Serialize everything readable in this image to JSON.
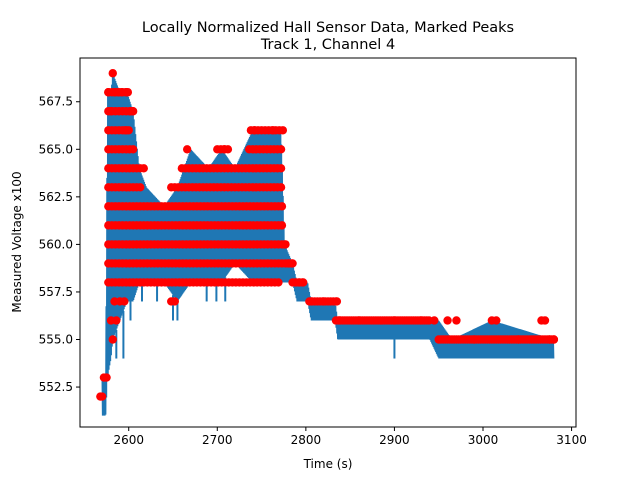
{
  "chart_data": {
    "type": "scatter",
    "title": "Locally Normalized Hall Sensor Data, Marked Peaks",
    "subtitle": "Track 1, Channel 4",
    "xlabel": "Time (s)",
    "ylabel": "Measured Voltage x100",
    "xlim": [
      2545,
      3105
    ],
    "ylim": [
      550.4,
      569.8
    ],
    "x_ticks": [
      2600,
      2700,
      2800,
      2900,
      3000,
      3100
    ],
    "x_tick_labels": [
      "2600",
      "2700",
      "2800",
      "2900",
      "3000",
      "3100"
    ],
    "y_ticks": [
      552.5,
      555.0,
      557.5,
      560.0,
      562.5,
      565.0,
      567.5
    ],
    "y_tick_labels": [
      "552.5",
      "555.0",
      "557.5",
      "560.0",
      "562.5",
      "565.0",
      "567.5"
    ],
    "grid": false,
    "colors": {
      "signal": "#1f77b4",
      "peaks": "#ff0000"
    },
    "series": [
      {
        "kind": "line",
        "envelope": [
          {
            "x": 2570,
            "y_min": 551,
            "y_max": 553
          },
          {
            "x": 2574,
            "y_min": 551,
            "y_max": 553
          },
          {
            "x": 2576,
            "y_min": 553,
            "y_max": 568
          },
          {
            "x": 2580,
            "y_min": 554,
            "y_max": 568
          },
          {
            "x": 2582,
            "y_min": 555,
            "y_max": 569
          },
          {
            "x": 2590,
            "y_min": 556,
            "y_max": 568
          },
          {
            "x": 2598,
            "y_min": 557,
            "y_max": 568
          },
          {
            "x": 2605,
            "y_min": 557,
            "y_max": 567
          },
          {
            "x": 2612,
            "y_min": 558,
            "y_max": 564
          },
          {
            "x": 2620,
            "y_min": 558,
            "y_max": 563
          },
          {
            "x": 2640,
            "y_min": 558,
            "y_max": 562
          },
          {
            "x": 2655,
            "y_min": 557,
            "y_max": 563
          },
          {
            "x": 2670,
            "y_min": 558,
            "y_max": 565
          },
          {
            "x": 2690,
            "y_min": 558,
            "y_max": 564
          },
          {
            "x": 2705,
            "y_min": 558,
            "y_max": 565
          },
          {
            "x": 2720,
            "y_min": 559,
            "y_max": 564
          },
          {
            "x": 2740,
            "y_min": 558,
            "y_max": 566
          },
          {
            "x": 2760,
            "y_min": 558,
            "y_max": 566
          },
          {
            "x": 2772,
            "y_min": 558,
            "y_max": 566
          },
          {
            "x": 2776,
            "y_min": 558,
            "y_max": 560
          },
          {
            "x": 2785,
            "y_min": 558,
            "y_max": 559
          },
          {
            "x": 2790,
            "y_min": 557,
            "y_max": 558
          },
          {
            "x": 2802,
            "y_min": 557,
            "y_max": 558
          },
          {
            "x": 2806,
            "y_min": 556,
            "y_max": 557
          },
          {
            "x": 2833,
            "y_min": 556,
            "y_max": 557
          },
          {
            "x": 2836,
            "y_min": 555,
            "y_max": 556
          },
          {
            "x": 2880,
            "y_min": 555,
            "y_max": 556
          },
          {
            "x": 2940,
            "y_min": 555,
            "y_max": 556
          },
          {
            "x": 2950,
            "y_min": 554,
            "y_max": 556
          },
          {
            "x": 2965,
            "y_min": 554,
            "y_max": 555
          },
          {
            "x": 3010,
            "y_min": 554,
            "y_max": 556
          },
          {
            "x": 3080,
            "y_min": 554,
            "y_max": 555
          }
        ],
        "dips": [
          {
            "x": 2586,
            "y": 554
          },
          {
            "x": 2594,
            "y": 554
          },
          {
            "x": 2602,
            "y": 556
          },
          {
            "x": 2615,
            "y": 557
          },
          {
            "x": 2632,
            "y": 557
          },
          {
            "x": 2650,
            "y": 556
          },
          {
            "x": 2655,
            "y": 556
          },
          {
            "x": 2688,
            "y": 557
          },
          {
            "x": 2699,
            "y": 557
          },
          {
            "x": 2709,
            "y": 557
          },
          {
            "x": 2900,
            "y": 554
          },
          {
            "x": 2950,
            "y": 554
          },
          {
            "x": 2968,
            "y": 554
          }
        ]
      },
      {
        "kind": "peaks",
        "points": [
          [
            2568,
            552
          ],
          [
            2570,
            552
          ],
          [
            2572,
            553
          ],
          [
            2575,
            553
          ],
          [
            2577,
            568
          ],
          [
            2580,
            567
          ],
          [
            2582,
            569
          ],
          [
            2584,
            568
          ],
          [
            2588,
            568
          ],
          [
            2592,
            568
          ],
          [
            2597,
            568
          ],
          [
            2599,
            568
          ],
          [
            2602,
            567
          ],
          [
            2604,
            567
          ],
          [
            2596,
            566
          ],
          [
            2600,
            566
          ],
          [
            2580,
            556
          ],
          [
            2582,
            555
          ],
          [
            2586,
            556
          ],
          [
            2590,
            557
          ],
          [
            2595,
            557
          ],
          [
            2648,
            557
          ],
          [
            2652,
            557
          ],
          [
            2584,
            557
          ],
          [
            2666,
            565
          ],
          [
            2708,
            565
          ],
          [
            2742,
            566
          ],
          [
            2763,
            566
          ],
          [
            2776,
            560
          ],
          [
            2780,
            559
          ],
          [
            2784,
            559
          ],
          [
            2788,
            558
          ],
          [
            2792,
            558
          ],
          [
            2796,
            558
          ],
          [
            2806,
            557
          ],
          [
            2820,
            557
          ],
          [
            2835,
            557
          ],
          [
            2838,
            556
          ],
          [
            2860,
            556
          ],
          [
            2900,
            556
          ],
          [
            2930,
            556
          ],
          [
            2945,
            556
          ],
          [
            2960,
            556
          ],
          [
            2970,
            556
          ],
          [
            2990,
            555
          ],
          [
            3010,
            556
          ],
          [
            3015,
            556
          ],
          [
            3040,
            555
          ],
          [
            3066,
            556
          ],
          [
            3070,
            556
          ],
          [
            3075,
            555
          ],
          [
            3080,
            555
          ]
        ],
        "bands": [
          {
            "y": 568,
            "x_start": 2577,
            "x_end": 2600,
            "spacing": 4
          },
          {
            "y": 567,
            "x_start": 2577,
            "x_end": 2605,
            "spacing": 4
          },
          {
            "y": 566,
            "x_start": 2577,
            "x_end": 2600,
            "spacing": 4
          },
          {
            "y": 566,
            "x_start": 2738,
            "x_end": 2774,
            "spacing": 4
          },
          {
            "y": 565,
            "x_start": 2577,
            "x_end": 2608,
            "spacing": 4
          },
          {
            "y": 565,
            "x_start": 2700,
            "x_end": 2712,
            "spacing": 4
          },
          {
            "y": 565,
            "x_start": 2736,
            "x_end": 2774,
            "spacing": 4
          },
          {
            "y": 564,
            "x_start": 2577,
            "x_end": 2620,
            "spacing": 4
          },
          {
            "y": 564,
            "x_start": 2660,
            "x_end": 2775,
            "spacing": 4
          },
          {
            "y": 563,
            "x_start": 2577,
            "x_end": 2615,
            "spacing": 4
          },
          {
            "y": 563,
            "x_start": 2648,
            "x_end": 2775,
            "spacing": 4
          },
          {
            "y": 562,
            "x_start": 2577,
            "x_end": 2775,
            "spacing": 4
          },
          {
            "y": 561,
            "x_start": 2577,
            "x_end": 2775,
            "spacing": 4
          },
          {
            "y": 560,
            "x_start": 2577,
            "x_end": 2780,
            "spacing": 4
          },
          {
            "y": 559,
            "x_start": 2577,
            "x_end": 2788,
            "spacing": 4
          },
          {
            "y": 558,
            "x_start": 2577,
            "x_end": 2772,
            "spacing": 4
          },
          {
            "y": 558,
            "x_start": 2785,
            "x_end": 2800,
            "spacing": 4
          },
          {
            "y": 557,
            "x_start": 2804,
            "x_end": 2834,
            "spacing": 3
          },
          {
            "y": 556,
            "x_start": 2834,
            "x_end": 2940,
            "spacing": 2.5
          },
          {
            "y": 555,
            "x_start": 2950,
            "x_end": 3080,
            "spacing": 2.5
          }
        ]
      }
    ]
  }
}
